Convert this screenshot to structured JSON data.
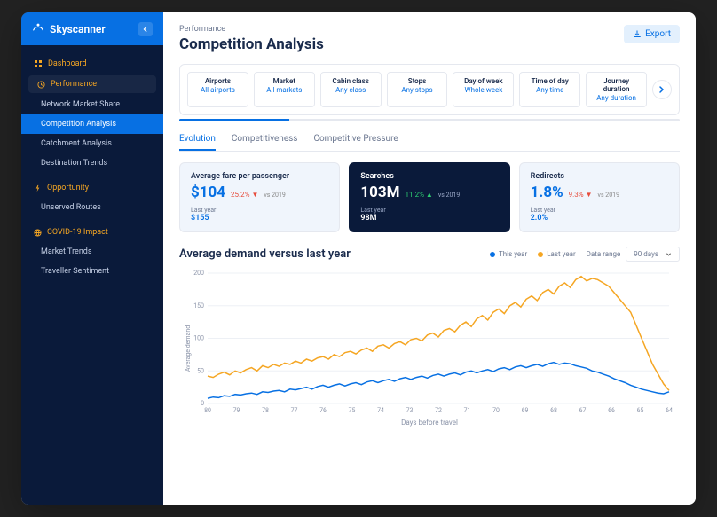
{
  "brand": {
    "name": "Skyscanner"
  },
  "sidebar": {
    "dashboard": "Dashboard",
    "sections": [
      {
        "label": "Performance",
        "items": [
          "Network Market Share",
          "Competition Analysis",
          "Catchment Analysis",
          "Destination Trends"
        ],
        "activeIndex": 1
      },
      {
        "label": "Opportunity",
        "items": [
          "Unserved Routes"
        ]
      },
      {
        "label": "COVID-19 Impact",
        "items": [
          "Market Trends",
          "Traveller Sentiment"
        ]
      }
    ]
  },
  "header": {
    "crumb": "Performance",
    "title": "Competition Analysis",
    "exportLabel": "Export"
  },
  "filters": {
    "items": [
      {
        "label": "Airports",
        "value": "All airports"
      },
      {
        "label": "Market",
        "value": "All markets"
      },
      {
        "label": "Cabin class",
        "value": "Any class"
      },
      {
        "label": "Stops",
        "value": "Any stops"
      },
      {
        "label": "Day of week",
        "value": "Whole week"
      },
      {
        "label": "Time of day",
        "value": "Any time"
      },
      {
        "label": "Journey duration",
        "value": "Any duration"
      }
    ],
    "progressPct": 22
  },
  "tabs": {
    "items": [
      "Evolution",
      "Competitiveness",
      "Competitive Pressure"
    ],
    "activeIndex": 0
  },
  "kpis": [
    {
      "title": "Average fare per passenger",
      "value": "$104",
      "delta": "25.2%",
      "dir": "down",
      "sub": "vs 2019",
      "lyLabel": "Last year",
      "lyVal": "$155",
      "dark": false
    },
    {
      "title": "Searches",
      "value": "103M",
      "delta": "11.2%",
      "dir": "up",
      "sub": "vs 2019",
      "lyLabel": "Last year",
      "lyVal": "98M",
      "dark": true
    },
    {
      "title": "Redirects",
      "value": "1.8%",
      "delta": "9.3%",
      "dir": "down",
      "sub": "vs 2019",
      "lyLabel": "Last year",
      "lyVal": "2.0%",
      "dark": false
    }
  ],
  "chart": {
    "title": "Average demand versus last year",
    "legend": [
      {
        "label": "This year",
        "color": "#0770e3"
      },
      {
        "label": "Last year",
        "color": "#f5a623"
      }
    ],
    "rangeLabel": "Data range",
    "rangeValue": "90 days",
    "yTitle": "Average demand",
    "xTitle": "Days before travel",
    "ylim": [
      0,
      200
    ],
    "yticks": [
      0,
      50,
      100,
      150,
      200
    ],
    "xticks": [
      80,
      79,
      78,
      77,
      76,
      75,
      74,
      73,
      72,
      71,
      70,
      69,
      68,
      67,
      66,
      65,
      64
    ],
    "colors": {
      "thisYear": "#0770e3",
      "lastYear": "#f5a623",
      "grid": "#edf0f5",
      "axis": "#8a93a8"
    },
    "lineWidth": 1.5,
    "series": {
      "lastYear": [
        42,
        40,
        45,
        48,
        44,
        50,
        47,
        52,
        55,
        50,
        58,
        55,
        60,
        57,
        62,
        60,
        65,
        62,
        68,
        65,
        70,
        72,
        68,
        75,
        72,
        78,
        80,
        76,
        82,
        85,
        80,
        88,
        90,
        85,
        92,
        95,
        90,
        98,
        100,
        96,
        105,
        108,
        102,
        112,
        115,
        110,
        120,
        125,
        118,
        130,
        135,
        128,
        140,
        145,
        138,
        150,
        155,
        148,
        160,
        165,
        158,
        170,
        175,
        168,
        180,
        185,
        178,
        190,
        195,
        188,
        192,
        190,
        185,
        180,
        170,
        160,
        150,
        140,
        120,
        100,
        80,
        60,
        45,
        30,
        20
      ],
      "thisYear": [
        8,
        10,
        9,
        12,
        11,
        14,
        13,
        15,
        16,
        14,
        18,
        17,
        19,
        20,
        18,
        22,
        21,
        23,
        25,
        22,
        26,
        28,
        25,
        28,
        30,
        27,
        30,
        32,
        29,
        33,
        35,
        32,
        35,
        37,
        34,
        38,
        40,
        37,
        40,
        42,
        39,
        43,
        45,
        42,
        45,
        47,
        44,
        48,
        50,
        47,
        50,
        52,
        49,
        53,
        55,
        52,
        56,
        58,
        55,
        58,
        60,
        57,
        61,
        63,
        60,
        62,
        61,
        58,
        56,
        54,
        50,
        48,
        45,
        42,
        38,
        35,
        32,
        28,
        25,
        22,
        20,
        18,
        16,
        15,
        18
      ]
    }
  }
}
